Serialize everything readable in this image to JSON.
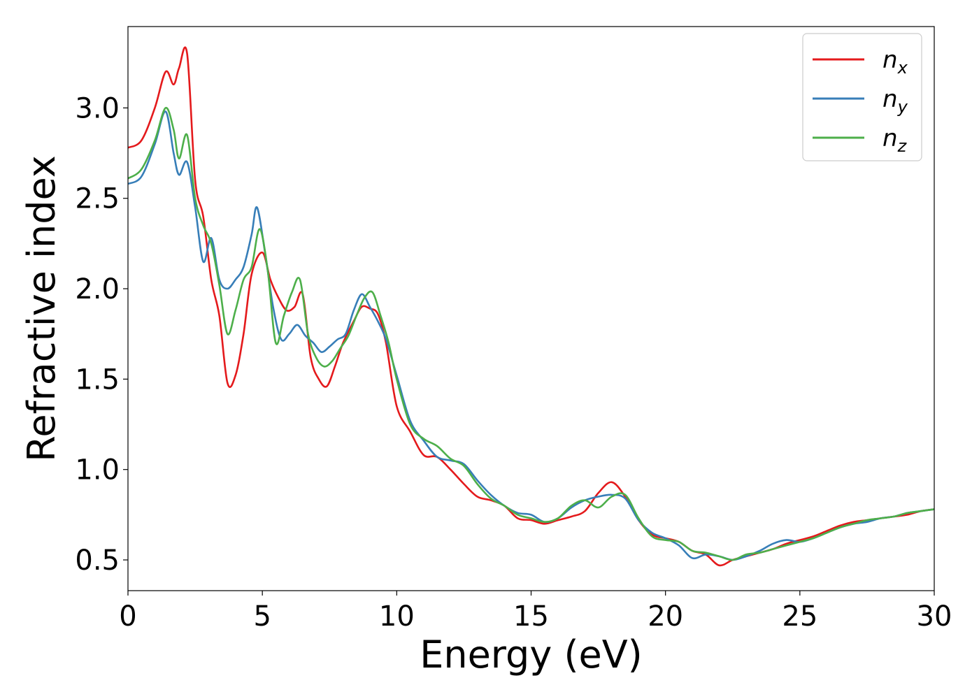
{
  "chart_data": {
    "type": "line",
    "title": "",
    "xlabel": "Energy (eV)",
    "ylabel": "Refractive index",
    "xlim": [
      0,
      30
    ],
    "ylim": [
      0.33,
      3.45
    ],
    "xticks": [
      0,
      5,
      10,
      15,
      20,
      25,
      30
    ],
    "yticks": [
      0.5,
      1.0,
      1.5,
      2.0,
      2.5,
      3.0
    ],
    "xtick_labels": [
      "0",
      "5",
      "10",
      "15",
      "20",
      "25",
      "30"
    ],
    "ytick_labels": [
      "0.5",
      "1.0",
      "1.5",
      "2.0",
      "2.5",
      "3.0"
    ],
    "grid": false,
    "legend_position": "top-right",
    "series": [
      {
        "name": "n_x",
        "label_main": "n",
        "label_sub": "x",
        "color": "#e41a1c",
        "x": [
          0,
          0.5,
          1.0,
          1.4,
          1.7,
          1.9,
          2.2,
          2.5,
          2.8,
          3.1,
          3.4,
          3.7,
          4.0,
          4.3,
          4.6,
          5.0,
          5.3,
          5.6,
          5.9,
          6.2,
          6.5,
          6.8,
          7.1,
          7.4,
          7.7,
          8.0,
          8.4,
          8.7,
          9.0,
          9.3,
          9.6,
          10.0,
          10.5,
          11.0,
          11.5,
          12.0,
          12.5,
          13.0,
          13.5,
          14.0,
          14.5,
          15.0,
          15.5,
          16.0,
          16.5,
          17.0,
          17.5,
          18.0,
          18.5,
          19.0,
          19.5,
          20.0,
          20.5,
          21.0,
          21.5,
          22.0,
          22.5,
          23.0,
          23.5,
          24.0,
          24.5,
          25.0,
          25.5,
          26.0,
          26.5,
          27.0,
          27.5,
          28.0,
          28.5,
          29.0,
          29.5,
          30.0
        ],
        "y": [
          2.78,
          2.82,
          3.0,
          3.2,
          3.13,
          3.22,
          3.3,
          2.6,
          2.4,
          2.05,
          1.85,
          1.48,
          1.52,
          1.75,
          2.08,
          2.2,
          2.05,
          1.95,
          1.88,
          1.9,
          1.97,
          1.62,
          1.5,
          1.46,
          1.57,
          1.7,
          1.82,
          1.9,
          1.89,
          1.86,
          1.7,
          1.35,
          1.21,
          1.08,
          1.07,
          1.0,
          0.92,
          0.85,
          0.83,
          0.8,
          0.73,
          0.72,
          0.7,
          0.72,
          0.74,
          0.77,
          0.87,
          0.93,
          0.85,
          0.72,
          0.64,
          0.62,
          0.6,
          0.55,
          0.53,
          0.47,
          0.5,
          0.52,
          0.54,
          0.56,
          0.59,
          0.61,
          0.63,
          0.66,
          0.69,
          0.71,
          0.72,
          0.73,
          0.74,
          0.75,
          0.77,
          0.78
        ]
      },
      {
        "name": "n_y",
        "label_main": "n",
        "label_sub": "y",
        "color": "#377eb8",
        "x": [
          0,
          0.5,
          1.0,
          1.4,
          1.7,
          1.9,
          2.2,
          2.5,
          2.8,
          3.1,
          3.4,
          3.7,
          4.0,
          4.3,
          4.6,
          4.8,
          5.1,
          5.4,
          5.7,
          6.0,
          6.3,
          6.6,
          6.9,
          7.2,
          7.5,
          7.8,
          8.1,
          8.4,
          8.7,
          9.0,
          9.3,
          9.6,
          10.0,
          10.5,
          11.0,
          11.5,
          12.0,
          12.5,
          13.0,
          13.5,
          14.0,
          14.5,
          15.0,
          15.5,
          16.0,
          16.5,
          17.0,
          17.5,
          18.0,
          18.5,
          19.0,
          19.5,
          20.0,
          20.5,
          21.0,
          21.5,
          22.0,
          22.5,
          23.0,
          23.5,
          24.0,
          24.5,
          25.0,
          25.5,
          26.0,
          26.5,
          27.0,
          27.5,
          28.0,
          28.5,
          29.0,
          29.5,
          30.0
        ],
        "y": [
          2.58,
          2.62,
          2.8,
          2.98,
          2.75,
          2.63,
          2.7,
          2.45,
          2.15,
          2.28,
          2.05,
          2.0,
          2.05,
          2.12,
          2.3,
          2.45,
          2.2,
          1.9,
          1.72,
          1.75,
          1.8,
          1.74,
          1.7,
          1.65,
          1.68,
          1.72,
          1.75,
          1.88,
          1.97,
          1.9,
          1.82,
          1.72,
          1.52,
          1.27,
          1.16,
          1.07,
          1.05,
          1.03,
          0.94,
          0.86,
          0.8,
          0.76,
          0.75,
          0.71,
          0.73,
          0.79,
          0.83,
          0.85,
          0.86,
          0.84,
          0.72,
          0.65,
          0.62,
          0.58,
          0.51,
          0.53,
          0.52,
          0.5,
          0.52,
          0.55,
          0.59,
          0.61,
          0.6,
          0.62,
          0.65,
          0.68,
          0.7,
          0.71,
          0.73,
          0.74,
          0.76,
          0.77,
          0.78
        ]
      },
      {
        "name": "n_z",
        "label_main": "n",
        "label_sub": "z",
        "color": "#4daf4a",
        "x": [
          0,
          0.5,
          1.0,
          1.4,
          1.7,
          1.9,
          2.2,
          2.5,
          2.8,
          3.1,
          3.4,
          3.7,
          4.0,
          4.3,
          4.6,
          4.9,
          5.2,
          5.5,
          5.8,
          6.1,
          6.4,
          6.7,
          7.0,
          7.3,
          7.6,
          7.9,
          8.2,
          8.5,
          8.8,
          9.1,
          9.4,
          9.7,
          10.0,
          10.5,
          11.0,
          11.5,
          12.0,
          12.5,
          13.0,
          13.5,
          14.0,
          14.5,
          15.0,
          15.5,
          16.0,
          16.5,
          17.0,
          17.5,
          18.0,
          18.5,
          19.0,
          19.5,
          20.0,
          20.5,
          21.0,
          21.5,
          22.0,
          22.5,
          23.0,
          23.5,
          24.0,
          24.5,
          25.0,
          25.5,
          26.0,
          26.5,
          27.0,
          27.5,
          28.0,
          28.5,
          29.0,
          29.5,
          30.0
        ],
        "y": [
          2.61,
          2.66,
          2.82,
          3.0,
          2.88,
          2.72,
          2.85,
          2.5,
          2.35,
          2.25,
          2.02,
          1.75,
          1.88,
          2.05,
          2.12,
          2.33,
          2.1,
          1.7,
          1.85,
          1.98,
          2.05,
          1.75,
          1.62,
          1.57,
          1.6,
          1.67,
          1.74,
          1.85,
          1.95,
          1.98,
          1.85,
          1.7,
          1.5,
          1.25,
          1.17,
          1.13,
          1.06,
          1.02,
          0.92,
          0.84,
          0.8,
          0.75,
          0.73,
          0.71,
          0.73,
          0.8,
          0.83,
          0.79,
          0.85,
          0.86,
          0.73,
          0.63,
          0.61,
          0.6,
          0.55,
          0.54,
          0.52,
          0.5,
          0.53,
          0.54,
          0.56,
          0.58,
          0.6,
          0.62,
          0.65,
          0.68,
          0.7,
          0.72,
          0.73,
          0.74,
          0.76,
          0.77,
          0.78
        ]
      }
    ]
  }
}
